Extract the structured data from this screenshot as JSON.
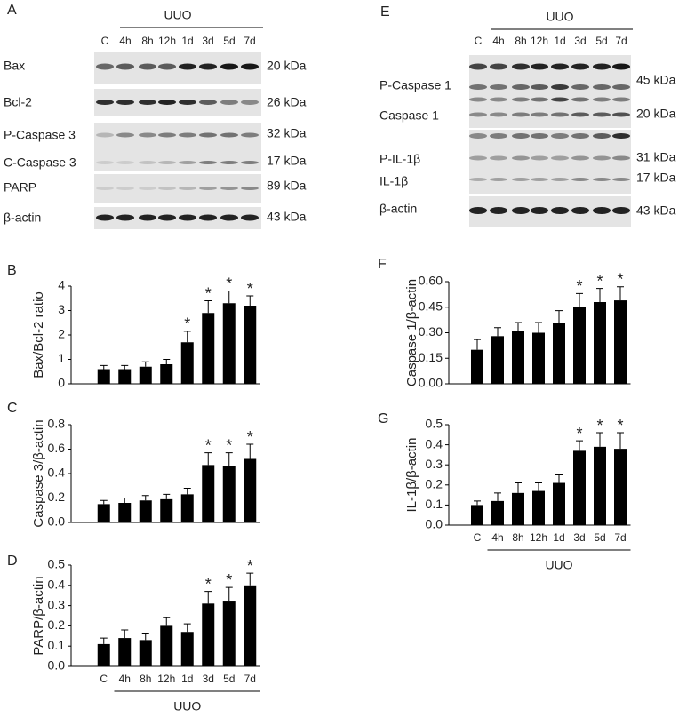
{
  "blots": [
    {
      "panel": "A",
      "group": "UUO",
      "lanes": [
        "C",
        "4h",
        "8h",
        "12h",
        "1d",
        "3d",
        "5d",
        "7d"
      ],
      "rows": [
        {
          "label": "Bax",
          "kda": "20 kDa"
        },
        {
          "label": "Bcl-2",
          "kda": "26 kDa"
        },
        {
          "label": "P-Caspase 3",
          "kda": "32 kDa"
        },
        {
          "label": "C-Caspase 3",
          "kda": "17 kDa"
        },
        {
          "label": "PARP",
          "kda": "89 kDa"
        },
        {
          "label": "β-actin",
          "kda": "43 kDa"
        }
      ]
    },
    {
      "panel": "E",
      "group": "UUO",
      "lanes": [
        "C",
        "4h",
        "8h",
        "12h",
        "1d",
        "3d",
        "5d",
        "7d"
      ],
      "rows": [
        {
          "label": "P-Caspase 1",
          "kda": "45 kDa"
        },
        {
          "label": "Caspase 1",
          "kda": "20 kDa"
        },
        {
          "label": "P-IL-1β",
          "kda": "31 kDa"
        },
        {
          "label": "IL-1β",
          "kda": "17 kDa"
        },
        {
          "label": "β-actin",
          "kda": "43 kDa"
        }
      ]
    }
  ],
  "chart_data": [
    {
      "type": "bar",
      "panel": "B",
      "ylabel": "Bax/Bcl-2 ratio",
      "color": "#000000",
      "categories": [
        null,
        null,
        null,
        null,
        null,
        null,
        null,
        null
      ],
      "values": [
        0.6,
        0.6,
        0.7,
        0.8,
        1.7,
        2.9,
        3.3,
        3.2
      ],
      "errors": [
        0.15,
        0.15,
        0.2,
        0.2,
        0.45,
        0.5,
        0.5,
        0.4
      ],
      "significance": [
        null,
        null,
        null,
        null,
        "*",
        "*",
        "*",
        "*"
      ],
      "ylim": [
        0,
        4
      ],
      "yticks": [
        0,
        1,
        2,
        3,
        4
      ]
    },
    {
      "type": "bar",
      "panel": "C",
      "ylabel": "Caspase 3/β-actin",
      "color": "#000000",
      "categories": [
        null,
        null,
        null,
        null,
        null,
        null,
        null,
        null
      ],
      "values": [
        0.15,
        0.16,
        0.18,
        0.19,
        0.23,
        0.47,
        0.46,
        0.52
      ],
      "errors": [
        0.03,
        0.04,
        0.04,
        0.04,
        0.05,
        0.1,
        0.11,
        0.12
      ],
      "significance": [
        null,
        null,
        null,
        null,
        null,
        "*",
        "*",
        "*"
      ],
      "ylim": [
        0,
        0.8
      ],
      "yticks": [
        {
          "value": 0,
          "label": "0.0"
        },
        0.2,
        0.4,
        0.6,
        0.8
      ]
    },
    {
      "type": "bar",
      "panel": "D",
      "ylabel": "PARP/β-actin",
      "xlabel": "UUO",
      "color": "#000000",
      "categories": [
        "C",
        "4h",
        "8h",
        "12h",
        "1d",
        "3d",
        "5d",
        "7d"
      ],
      "values": [
        0.11,
        0.14,
        0.13,
        0.2,
        0.17,
        0.31,
        0.32,
        0.4
      ],
      "errors": [
        0.03,
        0.04,
        0.03,
        0.04,
        0.04,
        0.06,
        0.07,
        0.06
      ],
      "significance": [
        null,
        null,
        null,
        null,
        null,
        "*",
        "*",
        "*"
      ],
      "ylim": [
        0,
        0.5
      ],
      "yticks": [
        {
          "value": 0,
          "label": "0.0"
        },
        0.1,
        0.2,
        0.3,
        0.4,
        0.5
      ]
    },
    {
      "type": "bar",
      "panel": "F",
      "ylabel": "Caspase 1/β-actin",
      "color": "#000000",
      "categories": [
        null,
        null,
        null,
        null,
        null,
        null,
        null,
        null
      ],
      "values": [
        0.2,
        0.28,
        0.31,
        0.3,
        0.36,
        0.45,
        0.48,
        0.49
      ],
      "errors": [
        0.06,
        0.05,
        0.05,
        0.06,
        0.07,
        0.08,
        0.08,
        0.08
      ],
      "significance": [
        null,
        null,
        null,
        null,
        null,
        "*",
        "*",
        "*"
      ],
      "ylim": [
        0,
        0.6
      ],
      "yticks": [
        {
          "value": 0,
          "label": "0.00"
        },
        {
          "value": 0.15,
          "label": "0.15"
        },
        {
          "value": 0.3,
          "label": "0.30"
        },
        {
          "value": 0.45,
          "label": "0.45"
        },
        {
          "value": 0.6,
          "label": "0.60"
        }
      ]
    },
    {
      "type": "bar",
      "panel": "G",
      "ylabel": "IL-1β/β-actin",
      "xlabel": "UUO",
      "color": "#000000",
      "categories": [
        "C",
        "4h",
        "8h",
        "12h",
        "1d",
        "3d",
        "5d",
        "7d"
      ],
      "values": [
        0.1,
        0.12,
        0.16,
        0.17,
        0.21,
        0.37,
        0.39,
        0.38
      ],
      "errors": [
        0.02,
        0.04,
        0.05,
        0.04,
        0.04,
        0.05,
        0.07,
        0.08
      ],
      "significance": [
        null,
        null,
        null,
        null,
        null,
        "*",
        "*",
        "*"
      ],
      "ylim": [
        0,
        0.5
      ],
      "yticks": [
        {
          "value": 0,
          "label": "0.0"
        },
        0.1,
        0.2,
        0.3,
        0.4,
        0.5
      ]
    }
  ]
}
